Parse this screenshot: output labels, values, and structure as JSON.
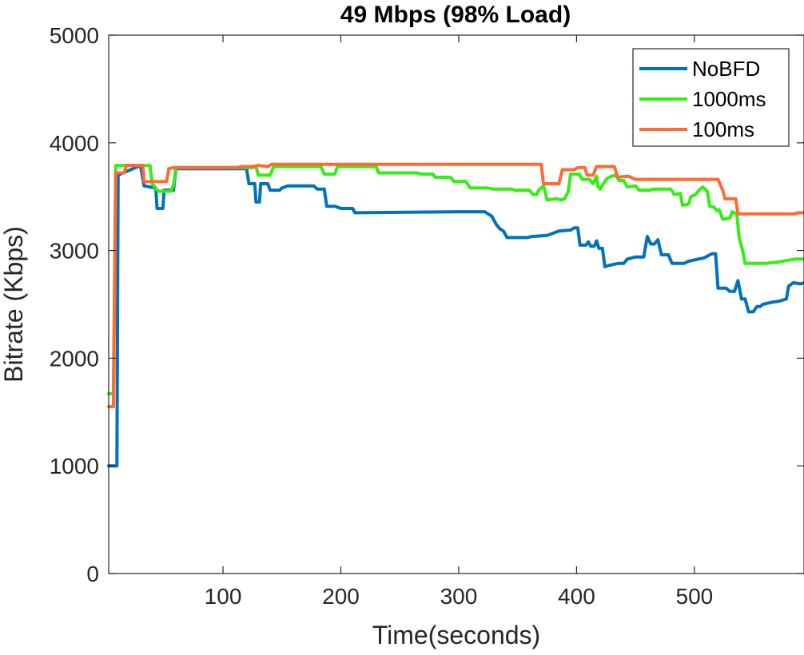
{
  "chart_data": {
    "type": "line",
    "title": "49 Mbps (98% Load)",
    "xlabel": "Time(seconds)",
    "ylabel": "Bitrate (Kbps)",
    "xlim": [
      3,
      593
    ],
    "ylim": [
      0,
      5000
    ],
    "xticks": [
      100,
      200,
      300,
      400,
      500
    ],
    "yticks": [
      0,
      1000,
      2000,
      3000,
      4000,
      5000
    ],
    "grid": false,
    "legend_position": "top-right",
    "series": [
      {
        "name": "NoBFD",
        "color": "#0072BD",
        "points": [
          [
            3,
            1000
          ],
          [
            10,
            1000
          ],
          [
            11,
            3700
          ],
          [
            30,
            3790
          ],
          [
            33,
            3600
          ],
          [
            43,
            3580
          ],
          [
            44,
            3390
          ],
          [
            49,
            3390
          ],
          [
            50,
            3560
          ],
          [
            58,
            3560
          ],
          [
            60,
            3760
          ],
          [
            120,
            3760
          ],
          [
            122,
            3620
          ],
          [
            127,
            3620
          ],
          [
            128,
            3450
          ],
          [
            131,
            3450
          ],
          [
            132,
            3620
          ],
          [
            138,
            3620
          ],
          [
            140,
            3560
          ],
          [
            148,
            3560
          ],
          [
            150,
            3580
          ],
          [
            155,
            3600
          ],
          [
            177,
            3600
          ],
          [
            180,
            3570
          ],
          [
            186,
            3570
          ],
          [
            188,
            3410
          ],
          [
            195,
            3410
          ],
          [
            200,
            3390
          ],
          [
            210,
            3390
          ],
          [
            212,
            3350
          ],
          [
            300,
            3360
          ],
          [
            322,
            3360
          ],
          [
            328,
            3320
          ],
          [
            332,
            3240
          ],
          [
            335,
            3200
          ],
          [
            338,
            3180
          ],
          [
            341,
            3120
          ],
          [
            358,
            3120
          ],
          [
            362,
            3130
          ],
          [
            375,
            3140
          ],
          [
            385,
            3180
          ],
          [
            395,
            3190
          ],
          [
            398,
            3210
          ],
          [
            401,
            3210
          ],
          [
            403,
            3050
          ],
          [
            408,
            3050
          ],
          [
            410,
            3080
          ],
          [
            412,
            3040
          ],
          [
            415,
            3040
          ],
          [
            417,
            3090
          ],
          [
            419,
            3020
          ],
          [
            422,
            3020
          ],
          [
            424,
            2850
          ],
          [
            427,
            2860
          ],
          [
            435,
            2880
          ],
          [
            440,
            2880
          ],
          [
            443,
            2920
          ],
          [
            450,
            2940
          ],
          [
            457,
            2940
          ],
          [
            460,
            3130
          ],
          [
            463,
            3060
          ],
          [
            466,
            3060
          ],
          [
            469,
            3100
          ],
          [
            472,
            2960
          ],
          [
            478,
            2960
          ],
          [
            481,
            2880
          ],
          [
            491,
            2880
          ],
          [
            495,
            2900
          ],
          [
            503,
            2920
          ],
          [
            508,
            2930
          ],
          [
            515,
            2970
          ],
          [
            518,
            2970
          ],
          [
            520,
            2650
          ],
          [
            527,
            2650
          ],
          [
            530,
            2620
          ],
          [
            534,
            2620
          ],
          [
            537,
            2720
          ],
          [
            540,
            2550
          ],
          [
            543,
            2550
          ],
          [
            546,
            2430
          ],
          [
            550,
            2430
          ],
          [
            553,
            2480
          ],
          [
            556,
            2480
          ],
          [
            558,
            2500
          ],
          [
            566,
            2520
          ],
          [
            572,
            2530
          ],
          [
            578,
            2550
          ],
          [
            580,
            2670
          ],
          [
            584,
            2700
          ],
          [
            590,
            2690
          ],
          [
            593,
            2700
          ]
        ]
      },
      {
        "name": "1000ms",
        "color": "#33ee11",
        "points": [
          [
            3,
            1670
          ],
          [
            7,
            1670
          ],
          [
            9,
            3790
          ],
          [
            38,
            3790
          ],
          [
            40,
            3620
          ],
          [
            45,
            3550
          ],
          [
            56,
            3550
          ],
          [
            58,
            3610
          ],
          [
            60,
            3770
          ],
          [
            125,
            3770
          ],
          [
            128,
            3780
          ],
          [
            130,
            3700
          ],
          [
            140,
            3700
          ],
          [
            143,
            3780
          ],
          [
            183,
            3780
          ],
          [
            186,
            3710
          ],
          [
            195,
            3710
          ],
          [
            197,
            3780
          ],
          [
            230,
            3780
          ],
          [
            232,
            3720
          ],
          [
            265,
            3720
          ],
          [
            268,
            3710
          ],
          [
            278,
            3710
          ],
          [
            280,
            3680
          ],
          [
            293,
            3680
          ],
          [
            296,
            3640
          ],
          [
            306,
            3640
          ],
          [
            310,
            3580
          ],
          [
            325,
            3580
          ],
          [
            329,
            3570
          ],
          [
            345,
            3570
          ],
          [
            348,
            3560
          ],
          [
            360,
            3560
          ],
          [
            363,
            3520
          ],
          [
            366,
            3520
          ],
          [
            368,
            3560
          ],
          [
            372,
            3600
          ],
          [
            375,
            3470
          ],
          [
            383,
            3480
          ],
          [
            387,
            3470
          ],
          [
            390,
            3480
          ],
          [
            393,
            3550
          ],
          [
            395,
            3710
          ],
          [
            402,
            3710
          ],
          [
            405,
            3660
          ],
          [
            411,
            3660
          ],
          [
            414,
            3620
          ],
          [
            417,
            3690
          ],
          [
            418,
            3600
          ],
          [
            420,
            3570
          ],
          [
            424,
            3640
          ],
          [
            426,
            3670
          ],
          [
            430,
            3690
          ],
          [
            433,
            3700
          ],
          [
            436,
            3650
          ],
          [
            440,
            3650
          ],
          [
            443,
            3590
          ],
          [
            450,
            3600
          ],
          [
            453,
            3560
          ],
          [
            462,
            3560
          ],
          [
            465,
            3570
          ],
          [
            480,
            3570
          ],
          [
            483,
            3520
          ],
          [
            488,
            3530
          ],
          [
            490,
            3420
          ],
          [
            495,
            3430
          ],
          [
            497,
            3500
          ],
          [
            501,
            3520
          ],
          [
            504,
            3560
          ],
          [
            507,
            3590
          ],
          [
            510,
            3560
          ],
          [
            511,
            3550
          ],
          [
            513,
            3410
          ],
          [
            517,
            3400
          ],
          [
            519,
            3370
          ],
          [
            521,
            3380
          ],
          [
            524,
            3290
          ],
          [
            530,
            3300
          ],
          [
            532,
            3360
          ],
          [
            536,
            3340
          ],
          [
            538,
            3120
          ],
          [
            541,
            3000
          ],
          [
            543,
            2880
          ],
          [
            560,
            2880
          ],
          [
            570,
            2890
          ],
          [
            580,
            2910
          ],
          [
            585,
            2920
          ],
          [
            593,
            2920
          ]
        ]
      },
      {
        "name": "100ms",
        "color": "#ff6a33",
        "points": [
          [
            3,
            1550
          ],
          [
            7,
            1550
          ],
          [
            9,
            3720
          ],
          [
            16,
            3720
          ],
          [
            18,
            3790
          ],
          [
            32,
            3790
          ],
          [
            33,
            3640
          ],
          [
            52,
            3640
          ],
          [
            54,
            3760
          ],
          [
            58,
            3770
          ],
          [
            112,
            3770
          ],
          [
            115,
            3780
          ],
          [
            125,
            3780
          ],
          [
            130,
            3790
          ],
          [
            138,
            3780
          ],
          [
            141,
            3800
          ],
          [
            370,
            3800
          ],
          [
            372,
            3620
          ],
          [
            385,
            3620
          ],
          [
            388,
            3750
          ],
          [
            398,
            3750
          ],
          [
            401,
            3770
          ],
          [
            407,
            3770
          ],
          [
            409,
            3700
          ],
          [
            414,
            3700
          ],
          [
            417,
            3780
          ],
          [
            432,
            3780
          ],
          [
            435,
            3680
          ],
          [
            444,
            3690
          ],
          [
            450,
            3660
          ],
          [
            520,
            3660
          ],
          [
            524,
            3560
          ],
          [
            526,
            3480
          ],
          [
            535,
            3480
          ],
          [
            537,
            3340
          ],
          [
            585,
            3340
          ],
          [
            588,
            3350
          ],
          [
            593,
            3350
          ]
        ]
      }
    ]
  }
}
